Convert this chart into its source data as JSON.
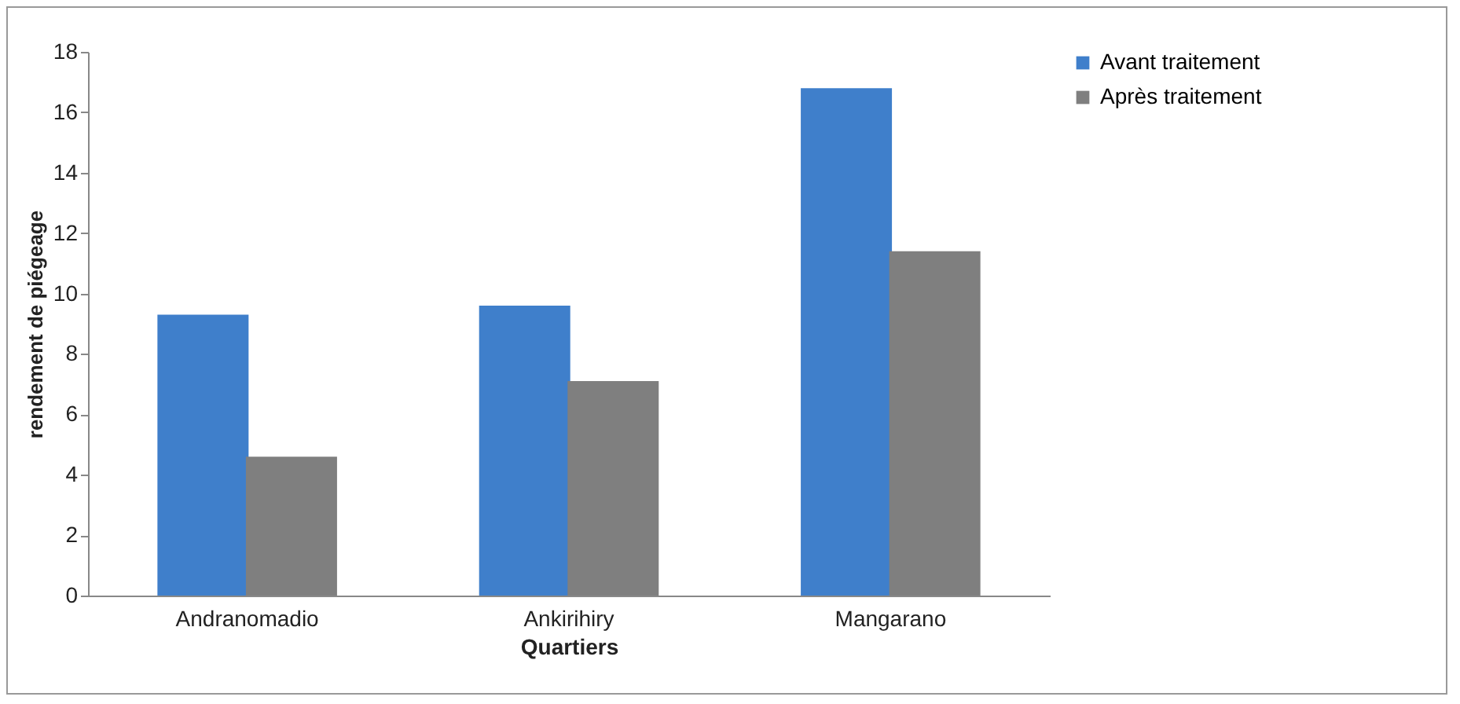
{
  "chart_data": {
    "type": "bar",
    "xlabel": "Quartiers",
    "ylabel": "rendement de piégeage",
    "categories": [
      "Andranomadio",
      "Ankirihiry",
      "Mangarano"
    ],
    "series": [
      {
        "name": "Avant traitement",
        "color": "#3f7fcb",
        "values": [
          9.3,
          9.6,
          16.8
        ]
      },
      {
        "name": "Après traitement",
        "color": "#7f7f7f",
        "values": [
          4.6,
          7.1,
          11.4
        ]
      }
    ],
    "ylim": [
      0,
      18
    ],
    "yticks": [
      0,
      2,
      4,
      6,
      8,
      10,
      12,
      14,
      16,
      18
    ],
    "grid": false,
    "legend": "right"
  }
}
